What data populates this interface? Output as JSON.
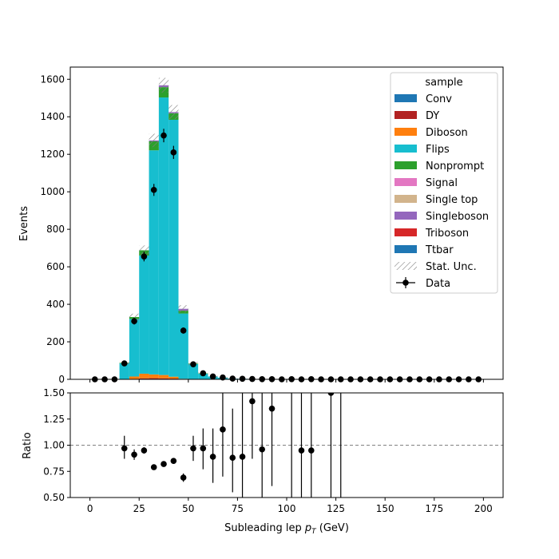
{
  "chart_data": {
    "type": "bar",
    "subtype": "stacked-histogram-with-ratio-panel",
    "bin_width": 5,
    "bin_centers": [
      2.5,
      7.5,
      12.5,
      17.5,
      22.5,
      27.5,
      32.5,
      37.5,
      42.5,
      47.5,
      52.5,
      57.5,
      62.5,
      67.5,
      72.5,
      77.5,
      82.5,
      87.5,
      92.5,
      97.5,
      102.5,
      107.5,
      112.5,
      117.5,
      122.5,
      127.5,
      132.5,
      137.5,
      142.5,
      147.5,
      152.5,
      157.5,
      162.5,
      167.5,
      172.5,
      177.5,
      182.5,
      187.5,
      192.5,
      197.5
    ],
    "xlabel": "Subleading lep p_T (GeV)",
    "ylabel_main": "Events",
    "ylabel_ratio": "Ratio",
    "xlim": [
      -10,
      210
    ],
    "ylim_main": [
      0,
      1665
    ],
    "ylim_ratio": [
      0.5,
      1.5
    ],
    "x_ticks": [
      0,
      25,
      50,
      75,
      100,
      125,
      150,
      175,
      200
    ],
    "y_ticks_main": [
      0,
      200,
      400,
      600,
      800,
      1000,
      1200,
      1400,
      1600
    ],
    "y_ticks_ratio": [
      0.5,
      0.75,
      1.0,
      1.25,
      1.5
    ],
    "y_ticks_ratio_labels": [
      "0.50",
      "0.75",
      "1.00",
      "1.25",
      "1.50"
    ],
    "ratio_reference_line": 1.0,
    "legend": {
      "title": "sample",
      "placement": "top-right",
      "entries": [
        "Conv",
        "DY",
        "Diboson",
        "Flips",
        "Nonprompt",
        "Signal",
        "Single top",
        "Singleboson",
        "Triboson",
        "Ttbar",
        "Stat. Unc.",
        "Data"
      ]
    },
    "series": [
      {
        "name": "Conv",
        "color": "#1f77b4",
        "values": [
          0,
          0,
          0,
          0,
          0,
          2,
          2,
          2,
          2,
          0,
          0,
          0,
          0,
          0,
          0,
          0,
          0,
          0,
          0,
          0,
          0,
          0,
          0,
          0,
          0,
          0,
          0,
          0,
          0,
          0,
          0,
          0,
          0,
          0,
          0,
          0,
          0,
          0,
          0,
          0
        ]
      },
      {
        "name": "DY",
        "color": "#b22222",
        "values": [
          0,
          0,
          0,
          0,
          0,
          3,
          4,
          3,
          2,
          0,
          0,
          0,
          0,
          0,
          0,
          0,
          0,
          0,
          0,
          0,
          0,
          0,
          0,
          0,
          0,
          0,
          0,
          0,
          0,
          0,
          0,
          0,
          0,
          0,
          0,
          0,
          0,
          0,
          0,
          0
        ]
      },
      {
        "name": "Diboson",
        "color": "#ff7f0e",
        "values": [
          0,
          0,
          0,
          2,
          15,
          25,
          20,
          18,
          10,
          3,
          1,
          0,
          0,
          0,
          0,
          0,
          0,
          0,
          0,
          0,
          0,
          0,
          0,
          0,
          0,
          0,
          0,
          0,
          0,
          0,
          0,
          0,
          0,
          0,
          0,
          0,
          0,
          0,
          0,
          0
        ]
      },
      {
        "name": "Flips",
        "color": "#17becf",
        "values": [
          0,
          0,
          0,
          83,
          307,
          630,
          1195,
          1480,
          1370,
          348,
          80,
          30,
          15,
          9,
          4,
          3,
          2,
          1,
          1,
          0,
          0,
          0,
          0,
          0,
          0,
          0,
          0,
          0,
          0,
          0,
          0,
          0,
          0,
          0,
          0,
          0,
          0,
          0,
          0,
          0
        ]
      },
      {
        "name": "Nonprompt",
        "color": "#2ca02c",
        "values": [
          0,
          0,
          0,
          3,
          10,
          28,
          48,
          55,
          35,
          15,
          3,
          2,
          0,
          0,
          0,
          0,
          0,
          0,
          0,
          0,
          0,
          0,
          0,
          0,
          0,
          0,
          0,
          0,
          0,
          0,
          0,
          0,
          0,
          0,
          0,
          0,
          0,
          0,
          0,
          0
        ]
      },
      {
        "name": "Signal",
        "color": "#e377c2",
        "values": [
          0,
          0,
          0,
          0,
          0,
          0,
          0,
          0,
          0,
          0,
          0,
          0,
          0,
          0,
          0,
          0,
          0,
          0,
          0,
          0,
          0,
          0,
          0,
          0,
          0,
          0,
          0,
          0,
          0,
          0,
          0,
          0,
          0,
          0,
          0,
          0,
          0,
          0,
          0,
          0
        ]
      },
      {
        "name": "Single top",
        "color": "#d2b48c",
        "values": [
          0,
          0,
          0,
          0,
          0,
          0,
          0,
          0,
          0,
          0,
          0,
          0,
          0,
          0,
          0,
          0,
          0,
          0,
          0,
          0,
          0,
          0,
          0,
          0,
          0,
          0,
          0,
          0,
          0,
          0,
          0,
          0,
          0,
          0,
          0,
          0,
          0,
          0,
          0,
          0
        ]
      },
      {
        "name": "Singleboson",
        "color": "#9467bd",
        "values": [
          0,
          0,
          0,
          0,
          0,
          0,
          5,
          10,
          6,
          10,
          0,
          0,
          0,
          0,
          0,
          0,
          0,
          0,
          0,
          0,
          0,
          0,
          0,
          0,
          0,
          0,
          0,
          0,
          0,
          0,
          0,
          0,
          0,
          0,
          0,
          0,
          0,
          0,
          0,
          0
        ]
      },
      {
        "name": "Triboson",
        "color": "#d62728",
        "values": [
          0,
          0,
          0,
          0,
          0,
          0,
          0,
          0,
          0,
          0,
          0,
          0,
          0,
          0,
          0,
          0,
          0,
          0,
          0,
          0,
          0,
          0,
          0,
          0,
          0,
          0,
          0,
          0,
          0,
          0,
          0,
          0,
          0,
          0,
          0,
          0,
          0,
          0,
          0,
          0
        ]
      },
      {
        "name": "Ttbar",
        "color": "#1f77b4",
        "values": [
          0,
          0,
          0,
          0,
          0,
          0,
          0,
          0,
          0,
          0,
          0,
          0,
          0,
          0,
          0,
          0,
          0,
          0,
          0,
          0,
          0,
          0,
          0,
          0,
          0,
          0,
          0,
          0,
          0,
          0,
          0,
          0,
          0,
          0,
          0,
          0,
          0,
          0,
          0,
          0
        ]
      }
    ],
    "data": {
      "name": "Data",
      "values": [
        0,
        0,
        0,
        85,
        310,
        655,
        1010,
        1300,
        1210,
        260,
        80,
        32,
        15,
        10,
        4,
        3,
        2,
        1,
        1,
        0,
        1,
        0,
        1,
        0,
        0,
        0,
        0,
        0,
        0,
        0,
        0,
        0,
        0,
        0,
        0,
        0,
        0,
        0,
        0,
        0
      ],
      "errors": [
        0,
        0,
        0,
        9,
        18,
        26,
        32,
        36,
        35,
        16,
        9,
        6,
        4,
        3,
        2,
        2,
        1,
        1,
        1,
        0,
        1,
        0,
        1,
        0,
        0,
        0,
        0,
        0,
        0,
        0,
        0,
        0,
        0,
        0,
        0,
        0,
        0,
        0,
        0,
        0
      ]
    },
    "ratio": {
      "x": [
        17.5,
        22.5,
        27.5,
        32.5,
        37.5,
        42.5,
        47.5,
        52.5,
        57.5,
        62.5,
        67.5,
        72.5,
        77.5,
        82.5,
        87.5,
        92.5,
        107.5,
        112.5,
        122.5
      ],
      "values": [
        0.97,
        0.91,
        0.95,
        0.79,
        0.82,
        0.85,
        0.69,
        0.97,
        0.97,
        0.89,
        1.15,
        0.88,
        0.89,
        1.42,
        0.96,
        1.35,
        0.95,
        0.95,
        1.5
      ],
      "err_low": [
        0.1,
        0.05,
        0.03,
        0.02,
        0.02,
        0.02,
        0.04,
        0.12,
        0.2,
        0.25,
        0.45,
        0.33,
        0.5,
        0.55,
        0.6,
        0.74,
        0.95,
        0.95,
        1.0
      ],
      "err_high": [
        0.12,
        0.05,
        0.03,
        0.02,
        0.02,
        0.02,
        0.04,
        0.12,
        0.19,
        0.27,
        0.45,
        0.47,
        0.61,
        0.55,
        0.6,
        0.74,
        0.95,
        0.95,
        1.0
      ]
    },
    "empty_ratio_bins_with_errorbars": [
      102.5,
      127.5
    ]
  }
}
